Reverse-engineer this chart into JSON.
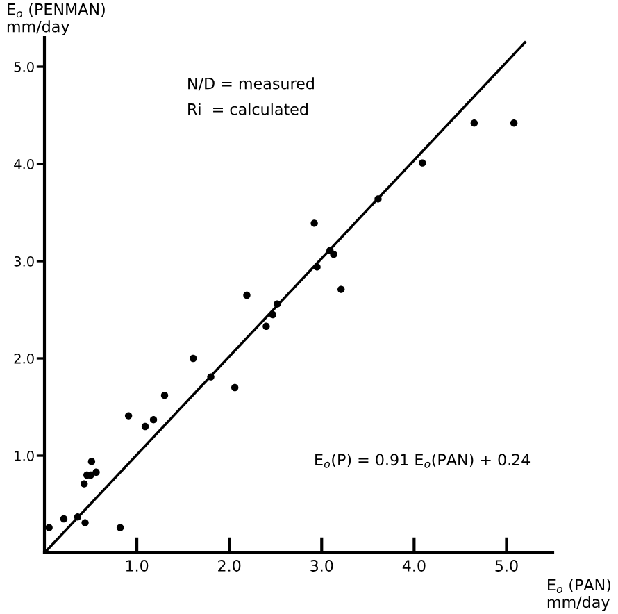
{
  "chart_data": {
    "type": "scatter",
    "ylabel": "E$_{o}$ (PENMAN)\nmm/day",
    "xlabel": "E$_{o}$ (PAN)\nmm/day",
    "annotations": [
      "N/D = measured",
      "Ri  = calculated",
      "E$_{o}$(P) = 0.91 E$_{o}$(PAN) + 0.24"
    ],
    "series": [
      {
        "color": "#000000",
        "marker": "circle",
        "x": [
          4.65,
          5.08,
          4.09,
          3.61,
          2.92,
          3.09,
          3.13,
          2.95,
          3.21,
          2.19,
          2.52,
          2.47,
          2.4,
          1.61,
          1.8,
          2.06,
          1.3,
          0.91,
          1.09,
          1.18,
          0.51,
          0.56,
          0.5,
          0.46,
          0.43,
          0.05,
          0.21,
          0.36,
          0.44,
          0.82
        ],
        "values": [
          4.42,
          4.42,
          4.01,
          3.64,
          3.39,
          3.11,
          3.07,
          2.94,
          2.71,
          2.65,
          2.56,
          2.45,
          2.33,
          2.0,
          1.81,
          1.7,
          1.62,
          1.41,
          1.3,
          1.37,
          0.94,
          0.83,
          0.8,
          0.8,
          0.71,
          0.26,
          0.35,
          0.37,
          0.31,
          0.26
        ]
      },
      {
        "type": "line",
        "color": "#000000",
        "marker": "none",
        "line_style": "solid",
        "x": [
          0,
          5.2
        ],
        "values": [
          0,
          5.25
        ]
      }
    ],
    "xlim": [
      0,
      5.5
    ],
    "ylim": [
      0,
      5.3
    ],
    "xticks": [
      {
        "value": 1,
        "label": "1.0"
      },
      {
        "value": 2,
        "label": "2.0"
      },
      {
        "value": 3,
        "label": "3.0"
      },
      {
        "value": 4,
        "label": "4.0"
      },
      {
        "value": 5,
        "label": "5.0"
      }
    ],
    "yticks": [
      {
        "value": 1,
        "label": "1.0"
      },
      {
        "value": 2,
        "label": "2.0"
      },
      {
        "value": 3,
        "label": "3.0"
      },
      {
        "value": 4,
        "label": "4.0"
      },
      {
        "value": 5,
        "label": "5.0"
      }
    ],
    "grid": false,
    "legend": false
  }
}
